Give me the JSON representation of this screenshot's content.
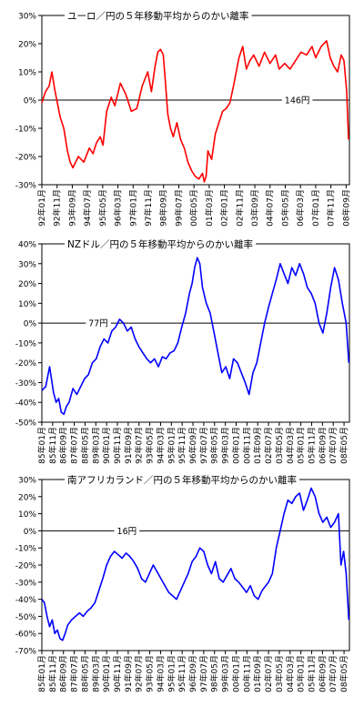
{
  "chart_data": [
    {
      "type": "line",
      "title": "ユーロ／円の５年移動平均からのかい離率",
      "color": "#ff0000",
      "ylim": [
        -30,
        30
      ],
      "yticks": [
        30,
        20,
        10,
        0,
        -10,
        -20,
        -30
      ],
      "ytick_labels": [
        "30%",
        "20%",
        "10%",
        "0%",
        "-10%",
        "-20%",
        "-30%"
      ],
      "xlim": [
        1992.0,
        2008.85
      ],
      "xtick_labels": [
        "92年01月",
        "92年11月",
        "93年09月",
        "94年07月",
        "95年05月",
        "96年03月",
        "97年01月",
        "97年11月",
        "98年09月",
        "99年07月",
        "00年05月",
        "01年03月",
        "02年01月",
        "02年11月",
        "03年09月",
        "04年07月",
        "05年05月",
        "06年03月",
        "07年01月",
        "07年11月",
        "08年09月"
      ],
      "xtick_pos": [
        1992.0,
        1992.833,
        1993.667,
        1994.5,
        1995.333,
        1996.167,
        1997.0,
        1997.833,
        1998.667,
        1999.5,
        2000.333,
        2001.167,
        2002.0,
        2002.833,
        2003.667,
        2004.5,
        2005.333,
        2006.167,
        2007.0,
        2007.833,
        2008.667
      ],
      "grid": "zero line only",
      "annotation": {
        "text": "146円",
        "x": 2005.3,
        "y": 0
      },
      "series": [
        {
          "x": [
            1992.0,
            1992.2,
            1992.4,
            1992.55,
            1992.7,
            1993.0,
            1993.2,
            1993.4,
            1993.55,
            1993.7,
            1994.0,
            1994.3,
            1994.6,
            1994.8,
            1995.0,
            1995.2,
            1995.35,
            1995.55,
            1995.8,
            1996.0,
            1996.3,
            1996.6,
            1996.9,
            1997.2,
            1997.5,
            1997.8,
            1998.0,
            1998.2,
            1998.35,
            1998.5,
            1998.65,
            1998.75,
            1998.9,
            1999.05,
            1999.2,
            1999.4,
            1999.6,
            1999.8,
            2000.0,
            2000.2,
            2000.4,
            2000.6,
            2000.8,
            2000.9,
            2001.0,
            2001.1,
            2001.3,
            2001.5,
            2001.7,
            2001.9,
            2002.1,
            2002.3,
            2002.5,
            2002.8,
            2003.0,
            2003.2,
            2003.4,
            2003.6,
            2003.9,
            2004.2,
            2004.5,
            2004.8,
            2005.0,
            2005.3,
            2005.6,
            2005.9,
            2006.2,
            2006.5,
            2006.8,
            2007.0,
            2007.3,
            2007.6,
            2007.8,
            2008.0,
            2008.2,
            2008.4,
            2008.55,
            2008.7,
            2008.8
          ],
          "y": [
            -1,
            3,
            5,
            10,
            4,
            -6,
            -10,
            -18,
            -22,
            -24,
            -20,
            -22,
            -17,
            -19,
            -15,
            -13,
            -16,
            -4,
            1,
            -2,
            6,
            2,
            -4,
            -3,
            5,
            10,
            3,
            12,
            17,
            18,
            16,
            8,
            -5,
            -10,
            -13,
            -8,
            -14,
            -17,
            -22,
            -25,
            -27,
            -28,
            -26,
            -29,
            -27,
            -18,
            -21,
            -12,
            -8,
            -4,
            -3,
            -1,
            5,
            15,
            19,
            11,
            14,
            16,
            12,
            17,
            13,
            16,
            11,
            13,
            11,
            14,
            17,
            16,
            19,
            15,
            19,
            21,
            15,
            12,
            10,
            16,
            14,
            3,
            -14
          ]
        }
      ]
    },
    {
      "type": "line",
      "title": "NZドル／円の５年移動平均からのかい離率",
      "color": "#0000ff",
      "ylim": [
        -50,
        40
      ],
      "yticks": [
        40,
        30,
        20,
        10,
        0,
        -10,
        -20,
        -30,
        -40,
        -50
      ],
      "ytick_labels": [
        "40%",
        "30%",
        "20%",
        "10%",
        "0%",
        "-10%",
        "-20%",
        "-30%",
        "-40%",
        "-50%"
      ],
      "xlim": [
        1985.0,
        2008.75
      ],
      "xtick_labels": [
        "85年01月",
        "85年11月",
        "86年09月",
        "87年07月",
        "88年05月",
        "89年03月",
        "90年01月",
        "90年11月",
        "91年09月",
        "92年07月",
        "93年05月",
        "94年03月",
        "95年01月",
        "95年11月",
        "96年09月",
        "97年07月",
        "98年05月",
        "99年03月",
        "00年01月",
        "00年11月",
        "01年09月",
        "02年07月",
        "03年05月",
        "04年03月",
        "05年01月",
        "05年11月",
        "06年09月",
        "07年07月",
        "08年05月"
      ],
      "xtick_pos": [
        1985.0,
        1985.833,
        1986.667,
        1987.5,
        1988.333,
        1989.167,
        1990.0,
        1990.833,
        1991.667,
        1992.5,
        1993.333,
        1994.167,
        1995.0,
        1995.833,
        1996.667,
        1997.5,
        1998.333,
        1999.167,
        2000.0,
        2000.833,
        2001.667,
        2002.5,
        2003.333,
        2004.167,
        2005.0,
        2005.833,
        2006.667,
        2007.5,
        2008.333
      ],
      "grid": "zero line only",
      "annotation": {
        "text": "77円",
        "x": 1988.6,
        "y": 0
      },
      "series": [
        {
          "x": [
            1985.0,
            1985.3,
            1985.6,
            1985.9,
            1986.1,
            1986.3,
            1986.5,
            1986.7,
            1986.9,
            1987.1,
            1987.4,
            1987.7,
            1988.0,
            1988.3,
            1988.6,
            1988.9,
            1989.2,
            1989.5,
            1989.8,
            1990.1,
            1990.4,
            1990.7,
            1991.0,
            1991.3,
            1991.6,
            1991.9,
            1992.2,
            1992.5,
            1992.8,
            1993.1,
            1993.4,
            1993.7,
            1994.0,
            1994.3,
            1994.6,
            1994.9,
            1995.2,
            1995.5,
            1995.8,
            1996.1,
            1996.4,
            1996.6,
            1996.8,
            1997.0,
            1997.2,
            1997.4,
            1997.7,
            1998.0,
            1998.3,
            1998.6,
            1998.9,
            1999.2,
            1999.5,
            1999.8,
            2000.1,
            2000.4,
            2000.7,
            2001.0,
            2001.3,
            2001.6,
            2001.9,
            2002.2,
            2002.5,
            2002.8,
            2003.1,
            2003.4,
            2003.7,
            2004.0,
            2004.3,
            2004.6,
            2004.9,
            2005.2,
            2005.5,
            2005.8,
            2006.1,
            2006.4,
            2006.7,
            2007.0,
            2007.3,
            2007.6,
            2007.9,
            2008.2,
            2008.5,
            2008.7
          ],
          "y": [
            -34,
            -32,
            -22,
            -35,
            -40,
            -38,
            -45,
            -46,
            -42,
            -40,
            -33,
            -36,
            -32,
            -28,
            -26,
            -20,
            -18,
            -12,
            -8,
            -10,
            -4,
            -2,
            2,
            0,
            -4,
            -2,
            -8,
            -12,
            -15,
            -18,
            -20,
            -18,
            -22,
            -17,
            -18,
            -15,
            -14,
            -10,
            -2,
            5,
            15,
            20,
            28,
            33,
            30,
            18,
            10,
            5,
            -5,
            -15,
            -25,
            -22,
            -28,
            -18,
            -20,
            -25,
            -30,
            -36,
            -25,
            -20,
            -10,
            0,
            8,
            15,
            22,
            30,
            25,
            20,
            28,
            24,
            30,
            25,
            18,
            15,
            10,
            0,
            -5,
            5,
            18,
            28,
            22,
            10,
            0,
            -20
          ]
        }
      ]
    },
    {
      "type": "line",
      "title": "南アフリカランド／円の５年移動平均からのかい離率",
      "color": "#0000ff",
      "ylim": [
        -70,
        30
      ],
      "yticks": [
        30,
        20,
        10,
        0,
        -10,
        -20,
        -30,
        -40,
        -50,
        -60,
        -70
      ],
      "ytick_labels": [
        "30%",
        "20%",
        "10%",
        "0%",
        "-10%",
        "-20%",
        "-30%",
        "-40%",
        "-50%",
        "-60%",
        "-70%"
      ],
      "xlim": [
        1985.0,
        2008.75
      ],
      "xtick_labels": [
        "85年01月",
        "85年11月",
        "86年09月",
        "87年07月",
        "88年05月",
        "89年03月",
        "90年01月",
        "90年11月",
        "91年09月",
        "92年07月",
        "93年05月",
        "94年03月",
        "95年01月",
        "95年11月",
        "96年09月",
        "97年07月",
        "98年05月",
        "99年03月",
        "00年01月",
        "00年11月",
        "01年09月",
        "02年07月",
        "03年05月",
        "04年03月",
        "05年01月",
        "05年11月",
        "06年09月",
        "07年07月",
        "08年05月"
      ],
      "xtick_pos": [
        1985.0,
        1985.833,
        1986.667,
        1987.5,
        1988.333,
        1989.167,
        1990.0,
        1990.833,
        1991.667,
        1992.5,
        1993.333,
        1994.167,
        1995.0,
        1995.833,
        1996.667,
        1997.5,
        1998.333,
        1999.167,
        2000.0,
        2000.833,
        2001.667,
        2002.5,
        2003.333,
        2004.167,
        2005.0,
        2005.833,
        2006.667,
        2007.5,
        2008.333
      ],
      "grid": "zero line only",
      "annotation": {
        "text": "16円",
        "x": 1990.8,
        "y": 0
      },
      "series": [
        {
          "x": [
            1985.0,
            1985.2,
            1985.4,
            1985.6,
            1985.8,
            1986.0,
            1986.2,
            1986.4,
            1986.6,
            1986.8,
            1987.0,
            1987.3,
            1987.6,
            1987.9,
            1988.2,
            1988.5,
            1988.8,
            1989.1,
            1989.4,
            1989.7,
            1990.0,
            1990.3,
            1990.6,
            1990.9,
            1991.2,
            1991.5,
            1991.8,
            1992.1,
            1992.4,
            1992.7,
            1993.0,
            1993.3,
            1993.6,
            1993.9,
            1994.2,
            1994.5,
            1994.8,
            1995.1,
            1995.4,
            1995.7,
            1996.0,
            1996.3,
            1996.6,
            1996.9,
            1997.2,
            1997.5,
            1997.8,
            1998.1,
            1998.4,
            1998.7,
            1999.0,
            1999.3,
            1999.6,
            1999.9,
            2000.2,
            2000.5,
            2000.8,
            2001.1,
            2001.4,
            2001.7,
            2002.0,
            2002.2,
            2002.5,
            2002.8,
            2003.1,
            2003.4,
            2003.7,
            2004.0,
            2004.3,
            2004.6,
            2004.9,
            2005.2,
            2005.5,
            2005.8,
            2006.1,
            2006.4,
            2006.7,
            2007.0,
            2007.3,
            2007.6,
            2007.9,
            2008.1,
            2008.3,
            2008.5,
            2008.7
          ],
          "y": [
            -40,
            -42,
            -50,
            -56,
            -52,
            -60,
            -58,
            -63,
            -64,
            -60,
            -55,
            -52,
            -50,
            -48,
            -50,
            -47,
            -45,
            -42,
            -35,
            -28,
            -20,
            -15,
            -12,
            -14,
            -16,
            -13,
            -15,
            -18,
            -22,
            -28,
            -30,
            -25,
            -20,
            -24,
            -28,
            -32,
            -36,
            -38,
            -40,
            -35,
            -30,
            -25,
            -18,
            -15,
            -10,
            -12,
            -20,
            -25,
            -18,
            -28,
            -30,
            -26,
            -22,
            -28,
            -30,
            -33,
            -36,
            -32,
            -38,
            -40,
            -35,
            -33,
            -30,
            -25,
            -10,
            0,
            10,
            18,
            16,
            20,
            22,
            12,
            18,
            25,
            20,
            10,
            5,
            8,
            2,
            5,
            10,
            -20,
            -12,
            -25,
            -52
          ]
        }
      ]
    }
  ]
}
